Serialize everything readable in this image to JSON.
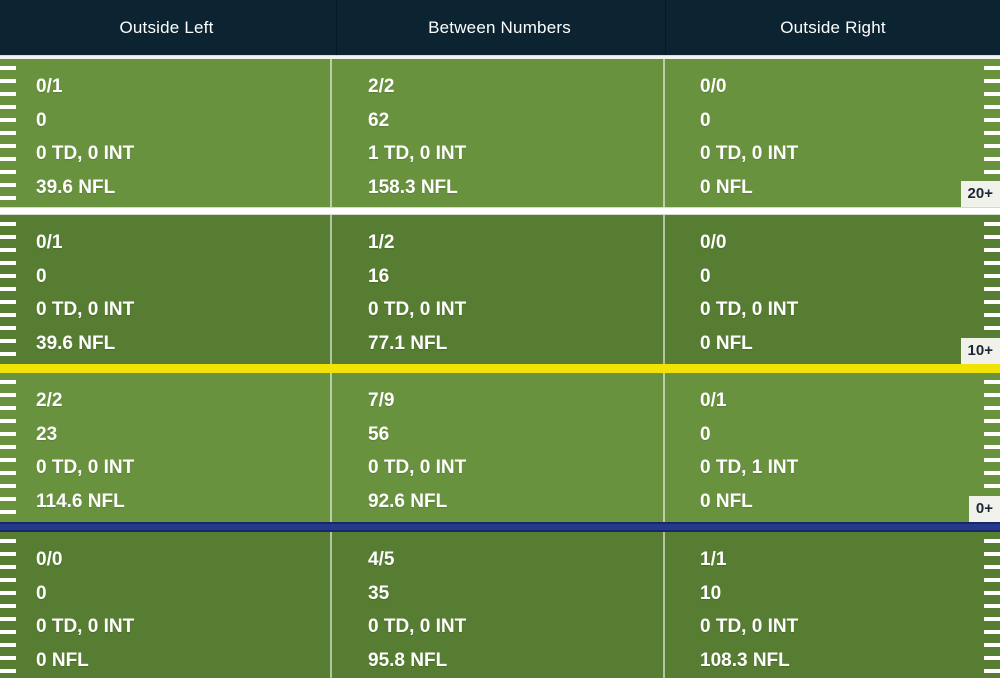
{
  "header": {
    "columns": [
      {
        "label": "Outside Left"
      },
      {
        "label": "Between Numbers"
      },
      {
        "label": "Outside Right"
      }
    ]
  },
  "chart_data": {
    "type": "table",
    "columns": [
      "Outside Left",
      "Between Numbers",
      "Outside Right"
    ],
    "cell_line_order": [
      "comp_att",
      "yards",
      "td_int",
      "nfl_rating"
    ],
    "rows": [
      {
        "zone_badge": "20+",
        "separator_color": "#ffffff",
        "cells": [
          {
            "comp_att": "0/1",
            "yards": "0",
            "td_int": "0 TD, 0 INT",
            "nfl_rating": "39.6 NFL"
          },
          {
            "comp_att": "2/2",
            "yards": "62",
            "td_int": "1 TD, 0 INT",
            "nfl_rating": "158.3 NFL"
          },
          {
            "comp_att": "0/0",
            "yards": "0",
            "td_int": "0 TD, 0 INT",
            "nfl_rating": "0 NFL"
          }
        ]
      },
      {
        "zone_badge": "10+",
        "separator_color": "#f2e307",
        "cells": [
          {
            "comp_att": "0/1",
            "yards": "0",
            "td_int": "0 TD, 0 INT",
            "nfl_rating": "39.6 NFL"
          },
          {
            "comp_att": "1/2",
            "yards": "16",
            "td_int": "0 TD, 0 INT",
            "nfl_rating": "77.1 NFL"
          },
          {
            "comp_att": "0/0",
            "yards": "0",
            "td_int": "0 TD, 0 INT",
            "nfl_rating": "0 NFL"
          }
        ]
      },
      {
        "zone_badge": "0+",
        "separator_color": "#24388c",
        "cells": [
          {
            "comp_att": "2/2",
            "yards": "23",
            "td_int": "0 TD, 0 INT",
            "nfl_rating": "114.6 NFL"
          },
          {
            "comp_att": "7/9",
            "yards": "56",
            "td_int": "0 TD, 0 INT",
            "nfl_rating": "92.6 NFL"
          },
          {
            "comp_att": "0/1",
            "yards": "0",
            "td_int": "0 TD, 1 INT",
            "nfl_rating": "0 NFL"
          }
        ]
      },
      {
        "zone_badge": null,
        "separator_color": null,
        "cells": [
          {
            "comp_att": "0/0",
            "yards": "0",
            "td_int": "0 TD, 0 INT",
            "nfl_rating": "0 NFL"
          },
          {
            "comp_att": "4/5",
            "yards": "35",
            "td_int": "0 TD, 0 INT",
            "nfl_rating": "95.8 NFL"
          },
          {
            "comp_att": "1/1",
            "yards": "10",
            "td_int": "0 TD, 0 INT",
            "nfl_rating": "108.3 NFL"
          }
        ]
      }
    ]
  },
  "colors": {
    "header_bg": "#0c2432",
    "field_green_light": "#69923f",
    "field_green_dark": "#567d32",
    "separator_white": "#ffffff",
    "separator_yellow": "#f2e307",
    "separator_blue": "#24388c",
    "badge_bg": "#f1f1ec",
    "badge_text": "#1b2733",
    "cell_text": "#ffffff"
  }
}
